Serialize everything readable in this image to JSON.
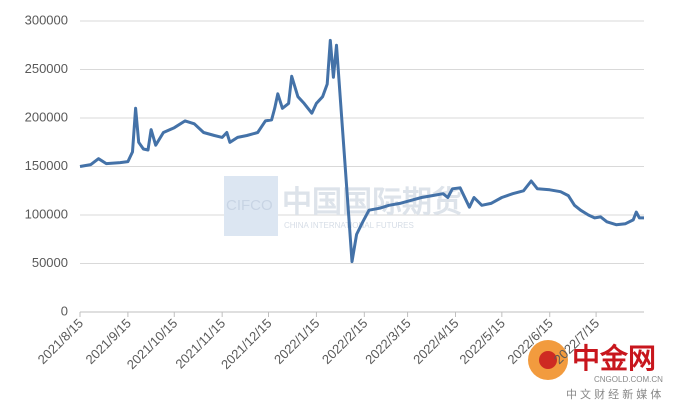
{
  "chart_data": {
    "type": "line",
    "x": [
      "2021/8/15",
      "2021/8/22",
      "2021/8/27",
      "2021/9/1",
      "2021/9/10",
      "2021/9/15",
      "2021/9/18",
      "2021/9/20",
      "2021/9/22",
      "2021/9/25",
      "2021/9/28",
      "2021/9/30",
      "2021/10/3",
      "2021/10/8",
      "2021/10/15",
      "2021/10/22",
      "2021/10/28",
      "2021/11/3",
      "2021/11/10",
      "2021/11/15",
      "2021/11/18",
      "2021/11/20",
      "2021/11/25",
      "2021/12/1",
      "2021/12/8",
      "2021/12/13",
      "2021/12/17",
      "2021/12/19",
      "2021/12/21",
      "2021/12/24",
      "2021/12/28",
      "2021/12/30",
      "2022/1/3",
      "2022/1/7",
      "2022/1/12",
      "2022/1/15",
      "2022/1/19",
      "2022/1/22",
      "2022/1/24",
      "2022/1/26",
      "2022/1/28",
      "2022/2/7",
      "2022/2/10",
      "2022/2/14",
      "2022/2/18",
      "2022/2/25",
      "2022/3/3",
      "2022/3/10",
      "2022/3/17",
      "2022/3/24",
      "2022/3/31",
      "2022/4/7",
      "2022/4/10",
      "2022/4/13",
      "2022/4/18",
      "2022/4/24",
      "2022/4/27",
      "2022/5/2",
      "2022/5/8",
      "2022/5/15",
      "2022/5/22",
      "2022/5/29",
      "2022/6/3",
      "2022/6/7",
      "2022/6/15",
      "2022/6/22",
      "2022/6/27",
      "2022/7/1",
      "2022/7/5",
      "2022/7/10",
      "2022/7/14",
      "2022/7/18",
      "2022/7/22",
      "2022/7/28",
      "2022/8/3",
      "2022/8/8",
      "2022/8/10",
      "2022/8/12",
      "2022/8/15"
    ],
    "series": [
      {
        "color": "#4472a8",
        "values": [
          150000,
          152000,
          158000,
          153000,
          154000,
          155000,
          165000,
          210000,
          175000,
          168000,
          167000,
          188000,
          172000,
          185000,
          190000,
          197000,
          194000,
          185000,
          182000,
          180000,
          185000,
          175000,
          180000,
          182000,
          185000,
          197000,
          198000,
          210000,
          225000,
          210000,
          215000,
          243000,
          222000,
          215000,
          205000,
          215000,
          222000,
          235000,
          280000,
          242000,
          275000,
          52000,
          80000,
          93000,
          105000,
          107000,
          110000,
          112000,
          115000,
          118000,
          120000,
          122000,
          118000,
          127000,
          128000,
          108000,
          118000,
          110000,
          112000,
          118000,
          122000,
          125000,
          135000,
          127000,
          126000,
          124000,
          120000,
          110000,
          105000,
          100000,
          97000,
          98000,
          93000,
          90000,
          91000,
          95000,
          103000,
          97000,
          97000
        ]
      }
    ],
    "xlim": [
      "2021/8/15",
      "2022/8/15"
    ],
    "xticks": [
      "2021/8/15",
      "2021/9/15",
      "2021/10/15",
      "2021/11/15",
      "2021/12/15",
      "2022/1/15",
      "2022/2/15",
      "2022/3/15",
      "2022/4/15",
      "2022/5/15",
      "2022/6/15",
      "2022/7/15"
    ],
    "ylim": [
      0,
      300000
    ],
    "yticks": [
      0,
      50000,
      100000,
      150000,
      200000,
      250000,
      300000
    ],
    "grid": true,
    "watermarks": [
      "CIFCO",
      "中国国际期货",
      "CHINA INTERNATIONAL FUTURES",
      "中金网",
      "CNGOLD.COM.CN",
      "中 文 财 经 新 媒 体"
    ]
  }
}
